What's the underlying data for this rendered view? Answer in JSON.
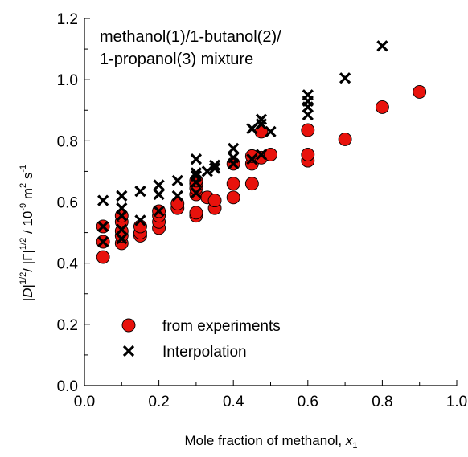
{
  "chart_data": {
    "type": "scatter",
    "annotation": [
      "methanol(1)/1-butanol(2)/",
      "1-propanol(3) mixture"
    ],
    "xlabel": "Mole fraction of methanol, x",
    "xlabel_parts": {
      "text": "Mole fraction of methanol, ",
      "var": "x",
      "sub": "1"
    },
    "ylabel_parts": {
      "a": "|",
      "b": "D",
      "c": "|",
      "d": "1/2",
      "e": "/ |Γ|",
      "f": "1/2",
      "g": " / 10",
      "h": "-9",
      "i": " m",
      "j": "2",
      "k": " s",
      "l": "-1"
    },
    "xlim": [
      0.0,
      1.0
    ],
    "ylim": [
      0.0,
      1.2
    ],
    "x_ticks": [
      "0.0",
      "0.2",
      "0.4",
      "0.6",
      "0.8",
      "1.0"
    ],
    "y_ticks": [
      "0.0",
      "0.2",
      "0.4",
      "0.6",
      "0.8",
      "1.0",
      "1.2"
    ],
    "legend_position": "bottom-left",
    "series": [
      {
        "name": "from experiments",
        "marker": "circle",
        "color": "#e8120c",
        "points": [
          [
            0.05,
            0.42
          ],
          [
            0.05,
            0.47
          ],
          [
            0.05,
            0.52
          ],
          [
            0.1,
            0.465
          ],
          [
            0.1,
            0.49
          ],
          [
            0.1,
            0.505
          ],
          [
            0.1,
            0.535
          ],
          [
            0.1,
            0.555
          ],
          [
            0.15,
            0.49
          ],
          [
            0.15,
            0.5
          ],
          [
            0.15,
            0.52
          ],
          [
            0.2,
            0.515
          ],
          [
            0.2,
            0.535
          ],
          [
            0.2,
            0.555
          ],
          [
            0.2,
            0.57
          ],
          [
            0.25,
            0.58
          ],
          [
            0.25,
            0.595
          ],
          [
            0.3,
            0.555
          ],
          [
            0.3,
            0.565
          ],
          [
            0.3,
            0.625
          ],
          [
            0.3,
            0.645
          ],
          [
            0.3,
            0.66
          ],
          [
            0.3,
            0.67
          ],
          [
            0.33,
            0.615
          ],
          [
            0.35,
            0.58
          ],
          [
            0.35,
            0.605
          ],
          [
            0.4,
            0.615
          ],
          [
            0.4,
            0.66
          ],
          [
            0.4,
            0.725
          ],
          [
            0.45,
            0.66
          ],
          [
            0.45,
            0.725
          ],
          [
            0.45,
            0.75
          ],
          [
            0.475,
            0.745
          ],
          [
            0.475,
            0.83
          ],
          [
            0.5,
            0.755
          ],
          [
            0.6,
            0.735
          ],
          [
            0.6,
            0.755
          ],
          [
            0.6,
            0.835
          ],
          [
            0.7,
            0.805
          ],
          [
            0.8,
            0.91
          ],
          [
            0.9,
            0.96
          ]
        ]
      },
      {
        "name": "Interpolation",
        "marker": "x",
        "color": "#000000",
        "points": [
          [
            0.05,
            0.47
          ],
          [
            0.05,
            0.52
          ],
          [
            0.05,
            0.605
          ],
          [
            0.1,
            0.48
          ],
          [
            0.1,
            0.51
          ],
          [
            0.1,
            0.555
          ],
          [
            0.1,
            0.58
          ],
          [
            0.1,
            0.62
          ],
          [
            0.15,
            0.54
          ],
          [
            0.15,
            0.635
          ],
          [
            0.2,
            0.57
          ],
          [
            0.2,
            0.625
          ],
          [
            0.2,
            0.655
          ],
          [
            0.25,
            0.62
          ],
          [
            0.25,
            0.67
          ],
          [
            0.3,
            0.63
          ],
          [
            0.3,
            0.665
          ],
          [
            0.3,
            0.685
          ],
          [
            0.3,
            0.695
          ],
          [
            0.3,
            0.74
          ],
          [
            0.33,
            0.7
          ],
          [
            0.35,
            0.71
          ],
          [
            0.35,
            0.72
          ],
          [
            0.4,
            0.725
          ],
          [
            0.4,
            0.745
          ],
          [
            0.4,
            0.775
          ],
          [
            0.45,
            0.74
          ],
          [
            0.45,
            0.84
          ],
          [
            0.475,
            0.755
          ],
          [
            0.475,
            0.855
          ],
          [
            0.475,
            0.87
          ],
          [
            0.5,
            0.83
          ],
          [
            0.6,
            0.885
          ],
          [
            0.6,
            0.91
          ],
          [
            0.6,
            0.93
          ],
          [
            0.6,
            0.95
          ],
          [
            0.7,
            1.005
          ],
          [
            0.8,
            1.11
          ]
        ]
      }
    ]
  }
}
